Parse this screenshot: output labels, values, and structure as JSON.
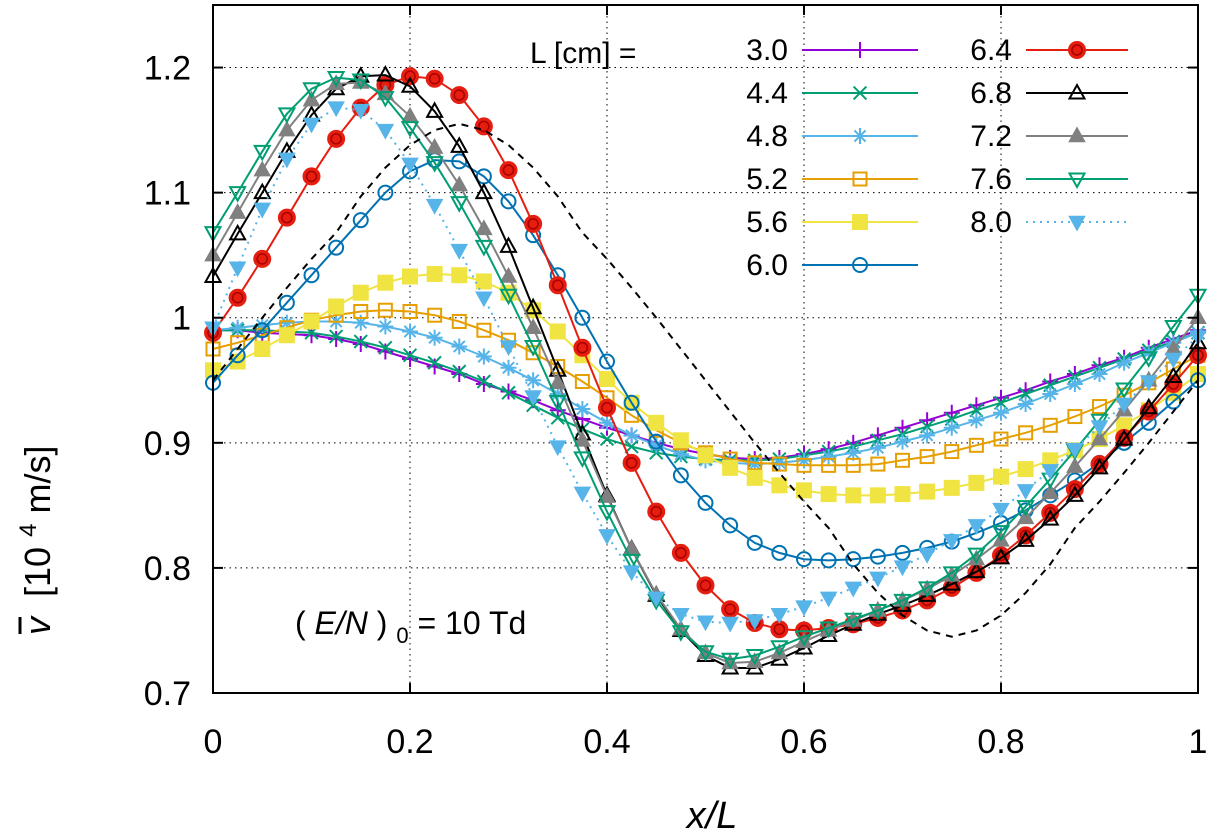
{
  "chart_data": {
    "type": "line",
    "xlabel": "x/L",
    "ylabel_sym": "v",
    "ylabel_unit": "[10",
    "ylabel_exp": "4",
    "ylabel_tail": " m/s]",
    "xlim": [
      0,
      1
    ],
    "ylim": [
      0.7,
      1.25
    ],
    "xticks": [
      "0",
      "0.2",
      "0.4",
      "0.6",
      "0.8",
      "1"
    ],
    "yticks": [
      "0.7",
      "0.8",
      "0.9",
      "1",
      "1.1",
      "1.2"
    ],
    "grid": true,
    "legend_title": "L [cm] =",
    "legend_position": "top-right",
    "annotation": {
      "pre": "(",
      "italic": "E/N",
      "post": ")",
      "sub": "0",
      "tail": " = 10 Td"
    },
    "x": [
      0,
      0.025,
      0.05,
      0.075,
      0.1,
      0.125,
      0.15,
      0.175,
      0.2,
      0.225,
      0.25,
      0.275,
      0.3,
      0.325,
      0.35,
      0.375,
      0.4,
      0.425,
      0.45,
      0.475,
      0.5,
      0.525,
      0.55,
      0.575,
      0.6,
      0.625,
      0.65,
      0.675,
      0.7,
      0.725,
      0.75,
      0.775,
      0.8,
      0.825,
      0.85,
      0.875,
      0.9,
      0.925,
      0.95,
      0.975,
      1.0
    ],
    "series": [
      {
        "name": "3.0",
        "color": "#9400d3",
        "marker": "plus",
        "dash": false,
        "values": [
          0.99,
          0.99,
          0.988,
          0.987,
          0.986,
          0.983,
          0.979,
          0.973,
          0.967,
          0.961,
          0.955,
          0.947,
          0.941,
          0.934,
          0.926,
          0.919,
          0.912,
          0.906,
          0.9,
          0.895,
          0.891,
          0.888,
          0.887,
          0.888,
          0.891,
          0.895,
          0.9,
          0.906,
          0.912,
          0.918,
          0.924,
          0.93,
          0.936,
          0.942,
          0.949,
          0.955,
          0.962,
          0.968,
          0.976,
          0.983,
          0.99
        ]
      },
      {
        "name": "4.4",
        "color": "#009e73",
        "marker": "x",
        "dash": false,
        "values": [
          0.99,
          0.99,
          0.99,
          0.989,
          0.988,
          0.985,
          0.981,
          0.976,
          0.97,
          0.964,
          0.957,
          0.949,
          0.94,
          0.93,
          0.92,
          0.911,
          0.903,
          0.897,
          0.892,
          0.889,
          0.887,
          0.886,
          0.886,
          0.887,
          0.89,
          0.893,
          0.897,
          0.902,
          0.907,
          0.913,
          0.919,
          0.926,
          0.932,
          0.939,
          0.946,
          0.953,
          0.96,
          0.967,
          0.974,
          0.981,
          0.988
        ]
      },
      {
        "name": "4.8",
        "color": "#56b4e9",
        "marker": "star",
        "dash": false,
        "values": [
          0.99,
          0.992,
          0.994,
          0.996,
          0.997,
          0.997,
          0.996,
          0.993,
          0.989,
          0.984,
          0.977,
          0.969,
          0.96,
          0.95,
          0.939,
          0.927,
          0.916,
          0.906,
          0.898,
          0.891,
          0.886,
          0.884,
          0.883,
          0.884,
          0.886,
          0.889,
          0.892,
          0.896,
          0.901,
          0.906,
          0.912,
          0.918,
          0.924,
          0.931,
          0.939,
          0.947,
          0.955,
          0.964,
          0.972,
          0.98,
          0.988
        ]
      },
      {
        "name": "5.2",
        "color": "#e69f00",
        "marker": "square-open",
        "dash": false,
        "values": [
          0.975,
          0.98,
          0.986,
          0.992,
          0.998,
          1.002,
          1.005,
          1.006,
          1.005,
          1.002,
          0.997,
          0.99,
          0.982,
          0.972,
          0.961,
          0.949,
          0.936,
          0.922,
          0.91,
          0.9,
          0.892,
          0.887,
          0.884,
          0.883,
          0.882,
          0.882,
          0.882,
          0.883,
          0.886,
          0.889,
          0.893,
          0.898,
          0.903,
          0.908,
          0.914,
          0.921,
          0.929,
          0.938,
          0.948,
          0.959,
          0.97
        ]
      },
      {
        "name": "5.6",
        "color": "#f0e442",
        "marker": "square-filled",
        "dash": false,
        "values": [
          0.958,
          0.965,
          0.975,
          0.986,
          0.997,
          1.009,
          1.02,
          1.028,
          1.033,
          1.035,
          1.034,
          1.029,
          1.02,
          1.006,
          0.989,
          0.97,
          0.951,
          0.932,
          0.916,
          0.902,
          0.89,
          0.88,
          0.872,
          0.866,
          0.862,
          0.859,
          0.858,
          0.858,
          0.859,
          0.861,
          0.864,
          0.868,
          0.873,
          0.879,
          0.886,
          0.894,
          0.903,
          0.914,
          0.926,
          0.94,
          0.955
        ]
      },
      {
        "name": "6.0",
        "color": "#0072b2",
        "marker": "circle-open",
        "dash": false,
        "values": [
          0.948,
          0.97,
          0.99,
          1.012,
          1.034,
          1.056,
          1.078,
          1.1,
          1.117,
          1.126,
          1.125,
          1.113,
          1.093,
          1.066,
          1.034,
          1.0,
          0.965,
          0.932,
          0.901,
          0.874,
          0.852,
          0.834,
          0.82,
          0.812,
          0.807,
          0.806,
          0.807,
          0.809,
          0.812,
          0.816,
          0.821,
          0.828,
          0.836,
          0.846,
          0.858,
          0.87,
          0.884,
          0.9,
          0.916,
          0.933,
          0.95
        ]
      },
      {
        "name": "6.4",
        "color": "#e51e10",
        "marker": "circle-filled",
        "dash": false,
        "values": [
          0.988,
          1.016,
          1.047,
          1.08,
          1.113,
          1.143,
          1.168,
          1.186,
          1.193,
          1.191,
          1.178,
          1.153,
          1.118,
          1.075,
          1.026,
          0.976,
          0.928,
          0.884,
          0.845,
          0.812,
          0.786,
          0.767,
          0.756,
          0.751,
          0.75,
          0.752,
          0.755,
          0.76,
          0.766,
          0.774,
          0.784,
          0.796,
          0.81,
          0.826,
          0.844,
          0.863,
          0.883,
          0.904,
          0.925,
          0.947,
          0.97
        ]
      },
      {
        "name": "6.8",
        "color": "#000000",
        "marker": "triangle-open",
        "dash": false,
        "values": [
          1.033,
          1.067,
          1.1,
          1.133,
          1.162,
          1.183,
          1.193,
          1.194,
          1.185,
          1.165,
          1.137,
          1.1,
          1.057,
          1.008,
          0.958,
          0.907,
          0.858,
          0.815,
          0.778,
          0.75,
          0.73,
          0.72,
          0.72,
          0.727,
          0.736,
          0.746,
          0.755,
          0.763,
          0.77,
          0.778,
          0.787,
          0.797,
          0.808,
          0.822,
          0.839,
          0.858,
          0.88,
          0.903,
          0.928,
          0.953,
          0.98
        ]
      },
      {
        "name": "7.2",
        "color": "#808080",
        "marker": "triangle-filled",
        "dash": false,
        "values": [
          1.05,
          1.084,
          1.118,
          1.15,
          1.174,
          1.187,
          1.188,
          1.179,
          1.161,
          1.136,
          1.106,
          1.071,
          1.033,
          0.992,
          0.948,
          0.902,
          0.857,
          0.815,
          0.779,
          0.751,
          0.732,
          0.724,
          0.725,
          0.732,
          0.741,
          0.75,
          0.758,
          0.766,
          0.774,
          0.783,
          0.794,
          0.807,
          0.822,
          0.84,
          0.86,
          0.881,
          0.903,
          0.926,
          0.95,
          0.975,
          1.0
        ]
      },
      {
        "name": "7.6",
        "color": "#009e73",
        "marker": "triangle-down-open",
        "dash": false,
        "values": [
          1.068,
          1.1,
          1.133,
          1.163,
          1.183,
          1.192,
          1.19,
          1.176,
          1.152,
          1.124,
          1.092,
          1.057,
          1.018,
          0.977,
          0.933,
          0.888,
          0.845,
          0.806,
          0.774,
          0.749,
          0.733,
          0.727,
          0.73,
          0.737,
          0.745,
          0.752,
          0.759,
          0.766,
          0.774,
          0.784,
          0.796,
          0.811,
          0.829,
          0.849,
          0.871,
          0.894,
          0.918,
          0.943,
          0.968,
          0.993,
          1.018
        ]
      },
      {
        "name": "8.0",
        "color": "#56b4e9",
        "marker": "triangle-down-filled",
        "dash": true,
        "values": [
          0.992,
          1.04,
          1.087,
          1.127,
          1.155,
          1.168,
          1.166,
          1.15,
          1.123,
          1.09,
          1.054,
          1.016,
          0.977,
          0.937,
          0.897,
          0.86,
          0.826,
          0.797,
          0.776,
          0.763,
          0.757,
          0.756,
          0.758,
          0.763,
          0.769,
          0.776,
          0.784,
          0.792,
          0.801,
          0.811,
          0.822,
          0.834,
          0.847,
          0.862,
          0.878,
          0.895,
          0.913,
          0.931,
          0.949,
          0.967,
          0.985
        ]
      },
      {
        "name": "",
        "color": "#000000",
        "marker": "none",
        "dash": true,
        "values": [
          0.95,
          0.975,
          1.0,
          1.024,
          1.047,
          1.068,
          1.097,
          1.12,
          1.138,
          1.15,
          1.155,
          1.15,
          1.138,
          1.12,
          1.097,
          1.068,
          1.047,
          1.024,
          1.0,
          0.975,
          0.95,
          0.925,
          0.9,
          0.876,
          0.853,
          0.832,
          0.803,
          0.78,
          0.762,
          0.75,
          0.745,
          0.75,
          0.762,
          0.78,
          0.803,
          0.832,
          0.853,
          0.876,
          0.9,
          0.925,
          0.95
        ]
      }
    ]
  }
}
